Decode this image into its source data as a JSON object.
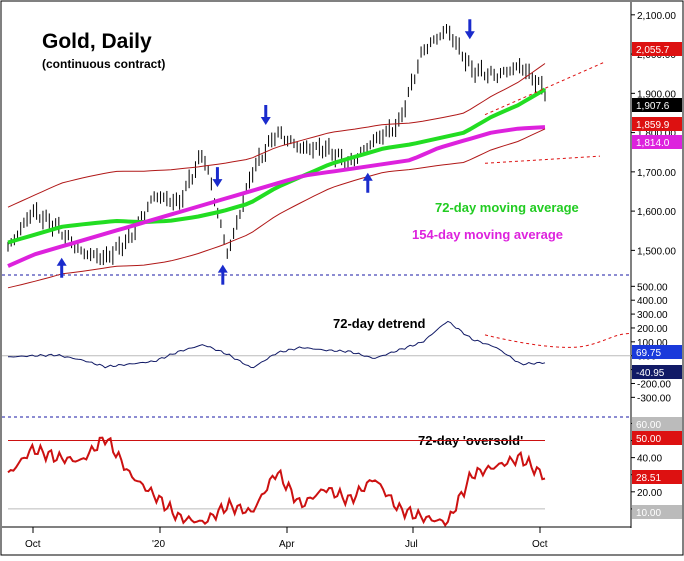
{
  "chart_data": [
    {
      "type": "line",
      "title": "Gold, Daily",
      "subtitle": "(continuous contract)",
      "x_ticks": [
        "Oct",
        "'20",
        "Apr",
        "Jul",
        "Oct"
      ],
      "y_ticks": [
        1500,
        1600,
        1700,
        1800,
        1900,
        2000,
        2100
      ],
      "y_tick_labels": [
        "1,500.00",
        "1,600.00",
        "1,700.00",
        "1,800.00",
        "1,900.00",
        "2,000.00",
        "2,100.00"
      ],
      "ylim": [
        1450,
        2125
      ],
      "annotations": [
        "72-day moving average",
        "154-day moving average"
      ],
      "series": [
        {
          "name": "72-day moving average",
          "color": "#22dd22",
          "values": [
            1520,
            1540,
            1560,
            1568,
            1575,
            1572,
            1575,
            1585,
            1600,
            1620,
            1660,
            1690,
            1720,
            1740,
            1760,
            1770,
            1785,
            1800,
            1840,
            1870,
            1910
          ]
        },
        {
          "name": "154-day moving average",
          "color": "#dd22dd",
          "values": [
            1460,
            1490,
            1510,
            1530,
            1550,
            1570,
            1590,
            1610,
            1630,
            1650,
            1670,
            1690,
            1700,
            1710,
            1720,
            1730,
            1760,
            1780,
            1800,
            1810,
            1814
          ]
        }
      ],
      "price_values": [
        1505,
        1600,
        1560,
        1495,
        1480,
        1530,
        1640,
        1620,
        1750,
        1490,
        1700,
        1800,
        1760,
        1760,
        1720,
        1780,
        1820,
        2010,
        2063,
        1960,
        1945,
        1970,
        1907
      ],
      "value_labels": [
        {
          "text": "2,055.7",
          "color": "#dd1111"
        },
        {
          "text": "1,907.6",
          "color": "#000000"
        },
        {
          "text": "1,859.9",
          "color": "#dd1111"
        },
        {
          "text": "1,814.0",
          "color": "#dd22dd"
        }
      ],
      "arrows_down_at": [
        0.39,
        0.48,
        0.86
      ],
      "arrows_up_at": [
        0.1,
        0.4,
        0.67
      ]
    },
    {
      "type": "line",
      "title": "72-day detrend",
      "y_ticks": [
        -300,
        -200,
        -100,
        0,
        100,
        200,
        300,
        400,
        500
      ],
      "y_tick_labels": [
        "-300.00",
        "-200.00",
        "-100.00",
        "0.00",
        "100.00",
        "200.00",
        "300.00",
        "400.00",
        "500.00"
      ],
      "ylim": [
        -420,
        560
      ],
      "series": [
        {
          "name": "detrend",
          "values": [
            -10,
            0,
            5,
            -30,
            -80,
            -60,
            -40,
            30,
            80,
            10,
            -90,
            20,
            60,
            40,
            30,
            -20,
            40,
            100,
            250,
            120,
            60,
            -60,
            -50
          ]
        }
      ],
      "value_labels": [
        {
          "text": "69.75",
          "color": "#1a3adb"
        },
        {
          "text": "-40.95",
          "color": "#111a66"
        }
      ]
    },
    {
      "type": "line",
      "title": "72-day 'oversold'",
      "y_ticks": [
        10,
        20,
        30,
        40,
        50,
        60
      ],
      "y_tick_labels": [
        "10.00",
        "20.00",
        "30.00",
        "40.00",
        "50.00",
        "60.00"
      ],
      "ylim": [
        0,
        62
      ],
      "reference_lines": [
        50,
        10
      ],
      "series": [
        {
          "name": "oversold",
          "color": "#cc1111",
          "values": [
            30,
            45,
            40,
            38,
            52,
            30,
            18,
            5,
            2,
            12,
            8,
            32,
            12,
            22,
            15,
            28,
            10,
            5,
            2,
            30,
            35,
            40,
            28.51
          ]
        }
      ],
      "value_labels": [
        {
          "text": "60.00",
          "color": "#bbbbbb"
        },
        {
          "text": "50.00",
          "color": "#dd1111"
        },
        {
          "text": "28.51",
          "color": "#dd1111"
        },
        {
          "text": "10.00",
          "color": "#bbbbbb"
        }
      ]
    }
  ]
}
